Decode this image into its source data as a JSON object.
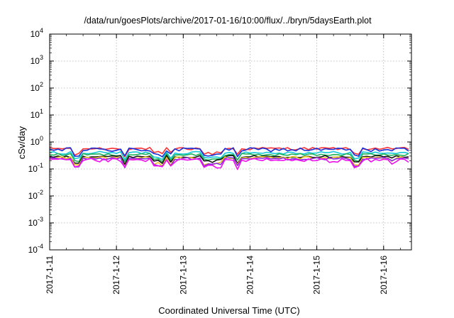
{
  "chart_data": {
    "type": "line",
    "title": "/data/run/goesPlots/archive/2017-01-16/10:00/flux/../bryn/5daysEarth.plot",
    "xlabel": "Coordinated Universal Time (UTC)",
    "ylabel": "cSv/day",
    "x_scale": "time",
    "y_scale": "log",
    "xlim": [
      "2017-01-11T00:00",
      "2017-01-16T10:00"
    ],
    "ylim": [
      0.0001,
      10000
    ],
    "x_ticks": [
      "2017-1-11",
      "2017-1-12",
      "2017-1-13",
      "2017-1-14",
      "2017-1-15",
      "2017-1-16"
    ],
    "y_ticks": [
      {
        "base": "10",
        "exp": "-4"
      },
      {
        "base": "10",
        "exp": "-3"
      },
      {
        "base": "10",
        "exp": "-2"
      },
      {
        "base": "10",
        "exp": "-1"
      },
      {
        "base": "10",
        "exp": "0"
      },
      {
        "base": "10",
        "exp": "1"
      },
      {
        "base": "10",
        "exp": "2"
      },
      {
        "base": "10",
        "exp": "3"
      },
      {
        "base": "10",
        "exp": "4"
      }
    ],
    "grid": true,
    "legend": "none",
    "time_step_hours": 1.5,
    "series": [
      {
        "color": "#ff3333",
        "base": 0.57,
        "noise": 0.07
      },
      {
        "color": "#1a2fd6",
        "base": 0.52,
        "noise": 0.1
      },
      {
        "color": "#13c8d8",
        "base": 0.4,
        "noise": 0.05
      },
      {
        "color": "#22b35a",
        "base": 0.34,
        "noise": 0.04
      },
      {
        "color": "#111111",
        "base": 0.29,
        "noise": 0.03
      },
      {
        "color": "#e8c020",
        "base": 0.26,
        "noise": 0.03
      },
      {
        "color": "#8a2be2",
        "base": 0.24,
        "noise": 0.03
      },
      {
        "color": "#ee10ee",
        "base": 0.21,
        "noise": 0.04
      }
    ],
    "dips": [
      {
        "time": "2017-01-11T09:45",
        "value": 0.11
      },
      {
        "time": "2017-01-12T02:30",
        "value": 0.1
      },
      {
        "time": "2017-01-12T14:15",
        "value": 0.13
      },
      {
        "time": "2017-01-12T16:30",
        "value": 0.11
      },
      {
        "time": "2017-01-12T19:00",
        "value": 0.12
      },
      {
        "time": "2017-01-13T07:45",
        "value": 0.12
      },
      {
        "time": "2017-01-13T09:15",
        "value": 0.12
      },
      {
        "time": "2017-01-13T10:15",
        "value": 0.12
      },
      {
        "time": "2017-01-13T12:45",
        "value": 0.13
      },
      {
        "time": "2017-01-13T19:00",
        "value": 0.11
      },
      {
        "time": "2017-01-15T14:15",
        "value": 0.11
      },
      {
        "time": "2017-01-16T03:00",
        "value": 0.16
      }
    ]
  }
}
